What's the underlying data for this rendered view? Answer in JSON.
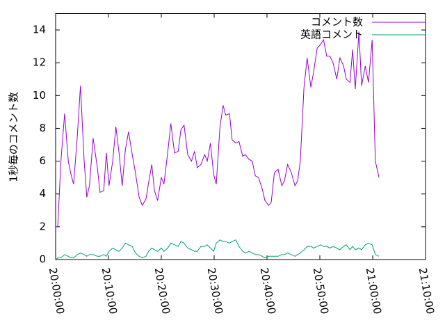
{
  "chart_data": {
    "type": "line",
    "ylabel": "1秒毎のコメント数",
    "x": [
      "20:00:00",
      "20:00:24",
      "20:01:00",
      "20:01:42",
      "20:02:24",
      "20:02:54",
      "20:03:24",
      "20:04:06",
      "20:04:42",
      "20:05:24",
      "20:05:54",
      "20:06:24",
      "20:07:06",
      "20:07:54",
      "20:08:24",
      "20:09:06",
      "20:09:36",
      "20:10:06",
      "20:10:48",
      "20:11:24",
      "20:12:00",
      "20:12:36",
      "20:13:12",
      "20:13:48",
      "20:14:30",
      "20:15:06",
      "20:15:48",
      "20:16:24",
      "20:17:06",
      "20:17:36",
      "20:18:12",
      "20:18:42",
      "20:19:18",
      "20:20:00",
      "20:20:30",
      "20:21:12",
      "20:21:48",
      "20:22:30",
      "20:23:12",
      "20:23:42",
      "20:24:18",
      "20:25:00",
      "20:25:42",
      "20:26:18",
      "20:26:48",
      "20:27:30",
      "20:28:12",
      "20:28:42",
      "20:29:18",
      "20:29:54",
      "20:30:24",
      "20:31:06",
      "20:31:42",
      "20:32:12",
      "20:32:54",
      "20:33:24",
      "20:34:06",
      "20:34:42",
      "20:35:24",
      "20:35:54",
      "20:36:36",
      "20:37:12",
      "20:37:48",
      "20:38:24",
      "20:39:06",
      "20:39:36",
      "20:40:18",
      "20:40:48",
      "20:41:24",
      "20:42:06",
      "20:42:48",
      "20:43:18",
      "20:43:54",
      "20:44:36",
      "20:45:18",
      "20:45:48",
      "20:46:18",
      "20:47:00",
      "20:47:36",
      "20:48:18",
      "20:48:48",
      "20:49:30",
      "20:50:06",
      "20:50:42",
      "20:51:18",
      "20:51:54",
      "20:52:30",
      "20:53:12",
      "20:53:48",
      "20:54:30",
      "20:55:00",
      "20:55:42",
      "20:56:12",
      "20:56:42",
      "20:57:24",
      "20:57:54",
      "20:58:36",
      "20:59:12",
      "20:59:54",
      "21:00:30",
      "21:01:12"
    ],
    "series": [
      {
        "name": "コメント数",
        "color": "#9400d3",
        "values": [
          2,
          2,
          6,
          8.9,
          6,
          5.2,
          4.6,
          7.5,
          10.6,
          6,
          3.8,
          4.5,
          7.4,
          5.6,
          4.1,
          4.2,
          6.5,
          4.5,
          6,
          8.1,
          6.5,
          4.5,
          6.7,
          7.8,
          6.4,
          5.3,
          3.8,
          3.3,
          3.7,
          4.7,
          5.8,
          4.2,
          3.6,
          5,
          4.6,
          6.5,
          8.3,
          6.5,
          6.6,
          7.9,
          8.2,
          6.4,
          6,
          6.6,
          5.6,
          5.8,
          6.4,
          6,
          7.1,
          5.2,
          4.6,
          8.1,
          9.4,
          8.8,
          8.9,
          7.3,
          7.1,
          7.2,
          6.3,
          6.4,
          6.1,
          6,
          5.1,
          5,
          4.3,
          3.6,
          3.3,
          3.5,
          5.3,
          5.5,
          4.5,
          4.8,
          5.8,
          5.3,
          4.5,
          4.8,
          6,
          10.5,
          12.3,
          10.5,
          11.4,
          12.9,
          13.1,
          13.4,
          12.4,
          12.4,
          12,
          11,
          12.3,
          11.8,
          11,
          10.8,
          12.8,
          10.4,
          13.9,
          10.6,
          11.8,
          10.8,
          13.4,
          6,
          5
        ]
      },
      {
        "name": "英語コメント",
        "color": "#009e73",
        "values": [
          0,
          0.1,
          0.1,
          0.3,
          0.2,
          0.1,
          0.1,
          0.3,
          0.4,
          0.3,
          0.2,
          0.3,
          0.3,
          0.2,
          0.2,
          0.3,
          0.2,
          0.5,
          0.7,
          0.6,
          0.5,
          0.7,
          1.0,
          0.9,
          0.8,
          0.4,
          0.2,
          0.1,
          0.2,
          0.5,
          0.7,
          0.6,
          0.5,
          0.7,
          0.5,
          0.7,
          1.0,
          0.9,
          0.8,
          1.1,
          1.0,
          0.7,
          0.6,
          0.5,
          0.5,
          0.8,
          0.8,
          0.9,
          0.7,
          0.5,
          1.0,
          1.2,
          1.1,
          1.1,
          1.0,
          1.1,
          1.2,
          0.8,
          0.5,
          0.4,
          0.5,
          0.4,
          0.3,
          0.3,
          0.2,
          0.1,
          0.2,
          0.2,
          0.2,
          0.2,
          0.3,
          0.3,
          0.4,
          0.3,
          0.2,
          0.3,
          0.4,
          0.6,
          0.8,
          0.8,
          0.7,
          0.8,
          0.9,
          0.8,
          0.8,
          0.7,
          0.8,
          0.7,
          0.6,
          0.8,
          0.9,
          0.6,
          0.8,
          0.6,
          0.7,
          0.6,
          0.9,
          1.0,
          0.9,
          0.3,
          0.2
        ]
      }
    ],
    "xlim": [
      "20:00:00",
      "21:10:00"
    ],
    "xticks": [
      "20:00:00",
      "20:10:00",
      "20:20:00",
      "20:30:00",
      "20:40:00",
      "20:50:00",
      "21:00:00",
      "21:10:00"
    ],
    "ylim": [
      0,
      15
    ],
    "yticks": [
      0,
      2,
      4,
      6,
      8,
      10,
      12,
      14
    ],
    "legend": "top-right"
  }
}
